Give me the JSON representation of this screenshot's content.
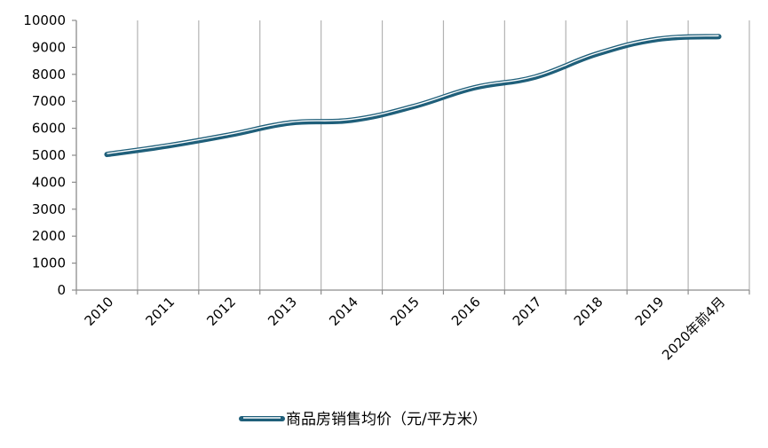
{
  "chart_data": {
    "type": "line",
    "categories": [
      "2010",
      "2011",
      "2012",
      "2013",
      "2014",
      "2015",
      "2016",
      "2017",
      "2018",
      "2019",
      "2020年前4月"
    ],
    "series": [
      {
        "name": "商品房销售均价（元/平方米）",
        "values": [
          5030,
          5350,
          5750,
          6200,
          6300,
          6800,
          7500,
          7900,
          8750,
          9300,
          9400
        ]
      }
    ],
    "y_ticks": [
      "0",
      "1000",
      "2000",
      "3000",
      "4000",
      "5000",
      "6000",
      "7000",
      "8000",
      "9000",
      "10000"
    ],
    "ylim": [
      0,
      10000
    ],
    "grid": "vertical",
    "legend": "bottom",
    "line_color": "#1f5f7a"
  }
}
